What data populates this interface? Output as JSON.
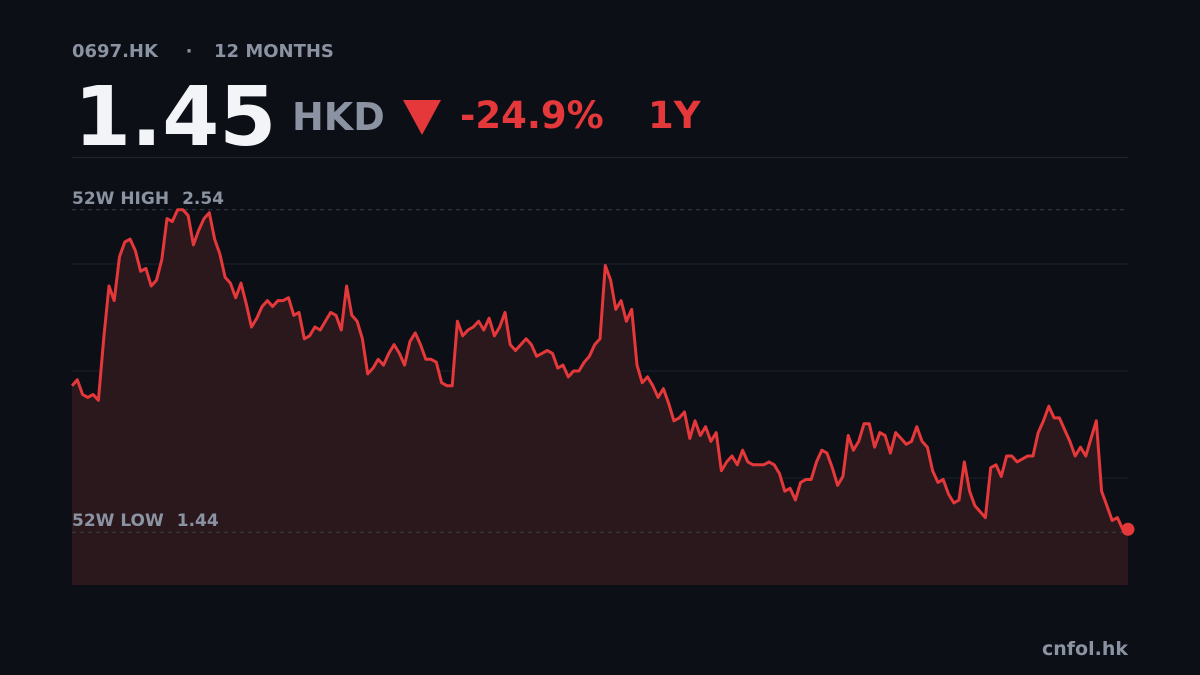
{
  "chart_data": {
    "type": "line",
    "ticker": "0697.HK",
    "separator": "·",
    "period": "12 MONTHS",
    "price": 1.45,
    "currency": "HKD",
    "change": "-24.9%",
    "range_label": "1Y",
    "high": {
      "label": "52W HIGH",
      "value": 2.54
    },
    "low": {
      "label": "52W LOW",
      "value": 1.44
    },
    "source": "cnfol.hk",
    "color": "#e5383b",
    "fill_color": "#2b181d",
    "ylim": [
      1.26,
      2.72
    ],
    "values": [
      1.94,
      1.96,
      1.91,
      1.9,
      1.91,
      1.89,
      2.1,
      2.28,
      2.23,
      2.38,
      2.43,
      2.44,
      2.4,
      2.33,
      2.34,
      2.28,
      2.3,
      2.37,
      2.51,
      2.5,
      2.54,
      2.54,
      2.52,
      2.42,
      2.47,
      2.51,
      2.53,
      2.44,
      2.39,
      2.31,
      2.29,
      2.24,
      2.29,
      2.22,
      2.14,
      2.17,
      2.21,
      2.23,
      2.21,
      2.23,
      2.23,
      2.24,
      2.18,
      2.19,
      2.1,
      2.11,
      2.14,
      2.13,
      2.16,
      2.19,
      2.18,
      2.13,
      2.28,
      2.18,
      2.16,
      2.1,
      1.98,
      2.0,
      2.03,
      2.01,
      2.05,
      2.08,
      2.05,
      2.01,
      2.09,
      2.12,
      2.08,
      2.03,
      2.03,
      2.02,
      1.95,
      1.94,
      1.94,
      2.16,
      2.11,
      2.13,
      2.14,
      2.16,
      2.13,
      2.17,
      2.11,
      2.14,
      2.19,
      2.08,
      2.06,
      2.08,
      2.1,
      2.08,
      2.04,
      2.05,
      2.06,
      2.05,
      2.0,
      2.01,
      1.97,
      1.99,
      1.99,
      2.02,
      2.04,
      2.08,
      2.1,
      2.35,
      2.3,
      2.2,
      2.23,
      2.16,
      2.2,
      2.01,
      1.95,
      1.97,
      1.94,
      1.9,
      1.93,
      1.88,
      1.82,
      1.83,
      1.85,
      1.76,
      1.82,
      1.77,
      1.8,
      1.75,
      1.78,
      1.65,
      1.68,
      1.7,
      1.67,
      1.72,
      1.68,
      1.67,
      1.67,
      1.67,
      1.68,
      1.67,
      1.64,
      1.58,
      1.59,
      1.55,
      1.61,
      1.62,
      1.62,
      1.68,
      1.72,
      1.71,
      1.66,
      1.6,
      1.63,
      1.77,
      1.72,
      1.75,
      1.81,
      1.81,
      1.73,
      1.78,
      1.77,
      1.71,
      1.78,
      1.76,
      1.74,
      1.75,
      1.8,
      1.75,
      1.73,
      1.65,
      1.61,
      1.62,
      1.57,
      1.54,
      1.55,
      1.68,
      1.58,
      1.53,
      1.51,
      1.49,
      1.66,
      1.67,
      1.63,
      1.7,
      1.7,
      1.68,
      1.69,
      1.7,
      1.7,
      1.78,
      1.82,
      1.87,
      1.83,
      1.83,
      1.79,
      1.75,
      1.7,
      1.73,
      1.7,
      1.76,
      1.82,
      1.58,
      1.53,
      1.48,
      1.49,
      1.45,
      1.45
    ]
  }
}
